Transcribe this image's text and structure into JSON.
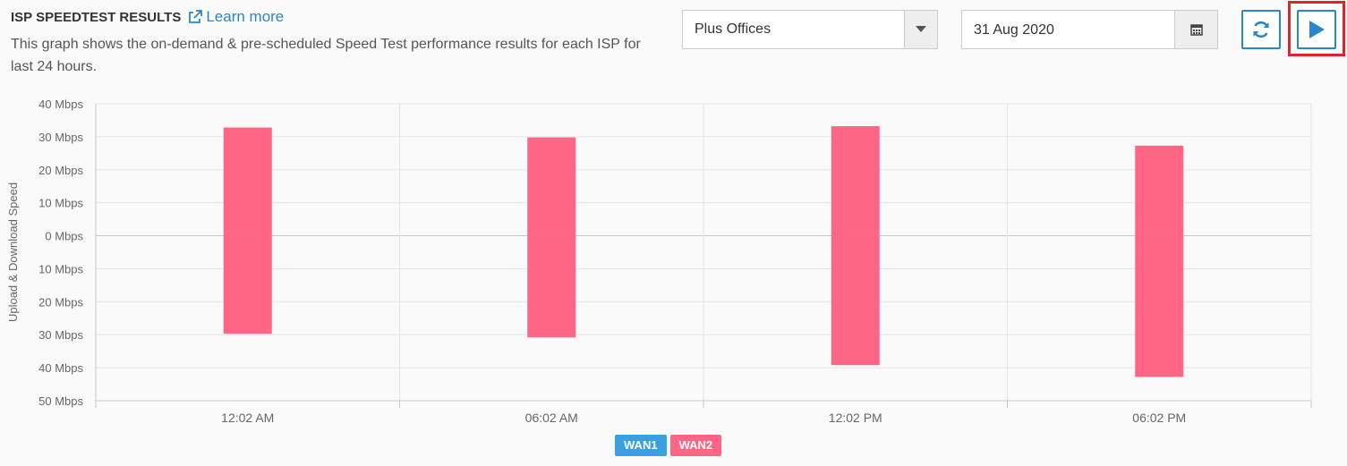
{
  "header": {
    "title": "ISP SPEEDTEST RESULTS",
    "learn_more": "Learn more",
    "description": "This graph shows the on-demand & pre-scheduled Speed Test performance results for each ISP for last 24 hours."
  },
  "controls": {
    "office_select": "Plus Offices",
    "date": "31 Aug 2020"
  },
  "icons": {
    "learn_more": "external-link-icon",
    "dropdown": "caret-down-icon",
    "date": "calendar-icon",
    "refresh": "refresh-icon",
    "run": "play-icon"
  },
  "colors": {
    "accent": "#2a86c9",
    "wan1": "#3aa0e0",
    "wan2": "#ff6685",
    "highlight": "#e0242b"
  },
  "chart_data": {
    "type": "bar",
    "ylabel": "Upload & Download Speed",
    "y_tick_labels": [
      "40 Mbps",
      "30 Mbps",
      "20 Mbps",
      "10 Mbps",
      "0 Mbps",
      "10 Mbps",
      "20 Mbps",
      "30 Mbps",
      "40 Mbps",
      "50 Mbps"
    ],
    "ylim": [
      -50,
      40
    ],
    "categories": [
      "12:02 AM",
      "06:02 AM",
      "12:02 PM",
      "06:02 PM"
    ],
    "series": [
      {
        "name": "WAN1",
        "upload": [],
        "download": []
      },
      {
        "name": "WAN2",
        "upload": [
          32.8,
          29.8,
          33.2,
          27.3
        ],
        "download": [
          -29.7,
          -30.8,
          -39.2,
          -42.8
        ]
      }
    ],
    "legend": [
      "WAN1",
      "WAN2"
    ],
    "legend_placement": "bottom",
    "grid": true
  }
}
